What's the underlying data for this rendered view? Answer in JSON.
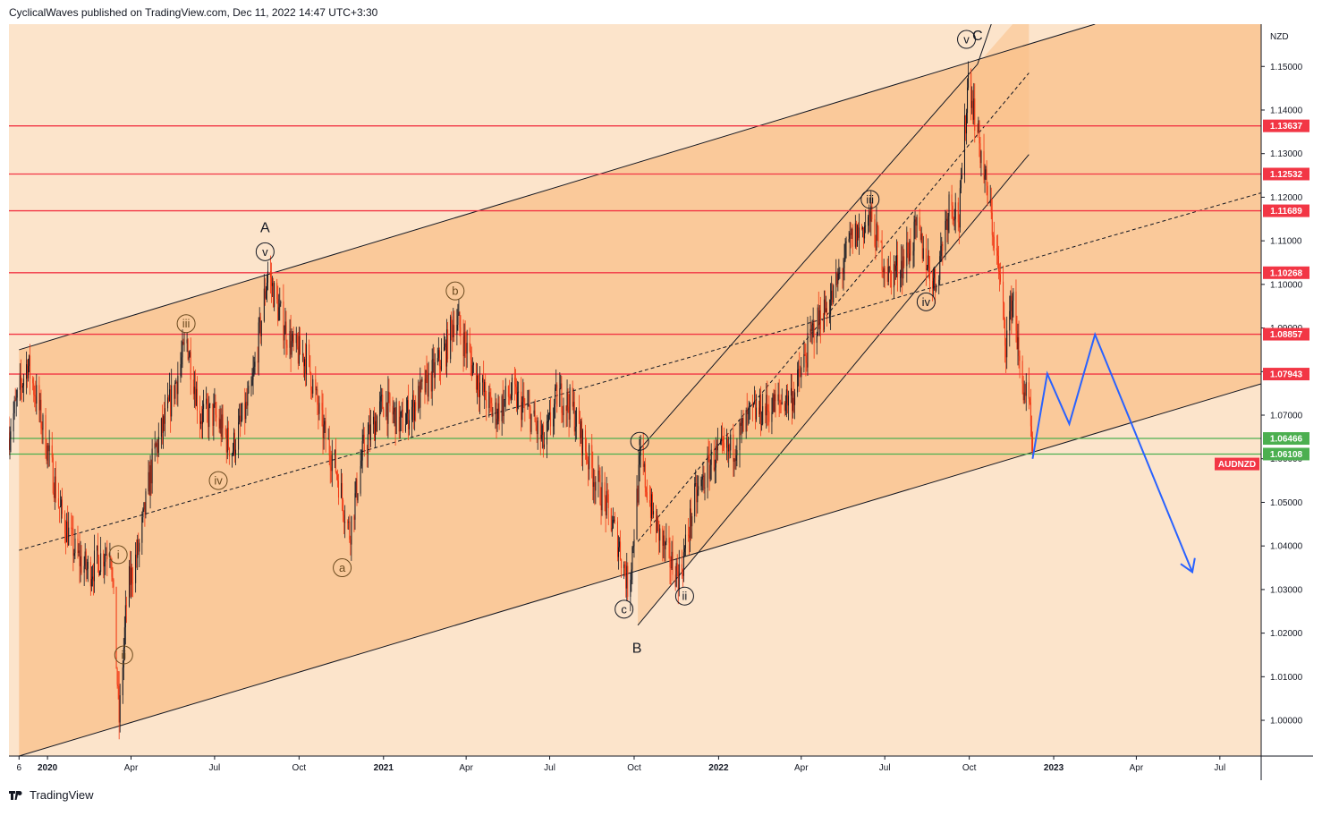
{
  "header": {
    "text": "CyclicalWaves published on TradingView.com, Dec 11, 2022 14:47 UTC+3:30"
  },
  "footer": {
    "brand": "TradingView",
    "logo_icon": "tradingview-logo-icon"
  },
  "chart_data": {
    "type": "candlestick",
    "symbol": "AUDNZD",
    "currency": "NZD",
    "colors": {
      "up": "#131722",
      "down": "#f23612",
      "resistance": "#f23645",
      "support": "#4caf50",
      "projection": "#2962ff",
      "channel_fill": "#f9c089",
      "background": "#fce4cb"
    },
    "x_axis": {
      "start": "2019-11-20",
      "end": "2023-08-15",
      "ticks": [
        {
          "date": "2019-12-01",
          "label": "6",
          "bold": false
        },
        {
          "date": "2020-01-01",
          "label": "2020",
          "bold": true
        },
        {
          "date": "2020-04-01",
          "label": "Apr",
          "bold": false
        },
        {
          "date": "2020-07-01",
          "label": "Jul",
          "bold": false
        },
        {
          "date": "2020-10-01",
          "label": "Oct",
          "bold": false
        },
        {
          "date": "2021-01-01",
          "label": "2021",
          "bold": true
        },
        {
          "date": "2021-04-01",
          "label": "Apr",
          "bold": false
        },
        {
          "date": "2021-07-01",
          "label": "Jul",
          "bold": false
        },
        {
          "date": "2021-10-01",
          "label": "Oct",
          "bold": false
        },
        {
          "date": "2022-01-01",
          "label": "2022",
          "bold": true
        },
        {
          "date": "2022-04-01",
          "label": "Apr",
          "bold": false
        },
        {
          "date": "2022-07-01",
          "label": "Jul",
          "bold": false
        },
        {
          "date": "2022-10-01",
          "label": "Oct",
          "bold": false
        },
        {
          "date": "2023-01-01",
          "label": "2023",
          "bold": true
        },
        {
          "date": "2023-04-01",
          "label": "Apr",
          "bold": false
        },
        {
          "date": "2023-07-01",
          "label": "Jul",
          "bold": false
        }
      ]
    },
    "y_axis": {
      "min": 0.9918,
      "max": 1.1597,
      "ticks": [
        "1.00000",
        "1.01000",
        "1.02000",
        "1.03000",
        "1.04000",
        "1.05000",
        "1.06000",
        "1.07000",
        "1.08000",
        "1.09000",
        "1.10000",
        "1.11000",
        "1.12000",
        "1.13000",
        "1.14000",
        "1.15000"
      ]
    },
    "price_path": [
      [
        "2019-11-20",
        1.066
      ],
      [
        "2019-12-01",
        1.075
      ],
      [
        "2019-12-10",
        1.082
      ],
      [
        "2019-12-20",
        1.074
      ],
      [
        "2020-01-01",
        1.062
      ],
      [
        "2020-01-15",
        1.048
      ],
      [
        "2020-02-01",
        1.038
      ],
      [
        "2020-02-15",
        1.034
      ],
      [
        "2020-03-01",
        1.038
      ],
      [
        "2020-03-10",
        1.04
      ],
      [
        "2020-03-19",
        1.0
      ],
      [
        "2020-03-28",
        1.03
      ],
      [
        "2020-04-10",
        1.04
      ],
      [
        "2020-04-25",
        1.06
      ],
      [
        "2020-05-10",
        1.07
      ],
      [
        "2020-06-01",
        1.087
      ],
      [
        "2020-06-15",
        1.07
      ],
      [
        "2020-07-01",
        1.07
      ],
      [
        "2020-07-20",
        1.062
      ],
      [
        "2020-08-10",
        1.075
      ],
      [
        "2020-08-28",
        1.103
      ],
      [
        "2020-09-10",
        1.093
      ],
      [
        "2020-09-25",
        1.085
      ],
      [
        "2020-10-10",
        1.083
      ],
      [
        "2020-10-25",
        1.068
      ],
      [
        "2020-11-10",
        1.058
      ],
      [
        "2020-11-25",
        1.043
      ],
      [
        "2020-12-10",
        1.062
      ],
      [
        "2021-01-01",
        1.073
      ],
      [
        "2021-01-20",
        1.068
      ],
      [
        "2021-02-05",
        1.073
      ],
      [
        "2021-02-20",
        1.078
      ],
      [
        "2021-03-10",
        1.085
      ],
      [
        "2021-03-20",
        1.093
      ],
      [
        "2021-04-10",
        1.08
      ],
      [
        "2021-05-01",
        1.07
      ],
      [
        "2021-05-20",
        1.075
      ],
      [
        "2021-06-10",
        1.07
      ],
      [
        "2021-06-25",
        1.063
      ],
      [
        "2021-07-10",
        1.075
      ],
      [
        "2021-07-25",
        1.072
      ],
      [
        "2021-08-15",
        1.058
      ],
      [
        "2021-08-30",
        1.05
      ],
      [
        "2021-09-15",
        1.04
      ],
      [
        "2021-09-25",
        1.03
      ],
      [
        "2021-10-08",
        1.06
      ],
      [
        "2021-10-20",
        1.048
      ],
      [
        "2021-11-05",
        1.038
      ],
      [
        "2021-11-20",
        1.033
      ],
      [
        "2021-12-05",
        1.05
      ],
      [
        "2021-12-25",
        1.06
      ],
      [
        "2022-01-15",
        1.062
      ],
      [
        "2022-02-05",
        1.07
      ],
      [
        "2022-03-01",
        1.072
      ],
      [
        "2022-03-25",
        1.075
      ],
      [
        "2022-04-15",
        1.09
      ],
      [
        "2022-05-05",
        1.097
      ],
      [
        "2022-05-25",
        1.11
      ],
      [
        "2022-06-15",
        1.115
      ],
      [
        "2022-07-05",
        1.102
      ],
      [
        "2022-07-20",
        1.105
      ],
      [
        "2022-08-05",
        1.112
      ],
      [
        "2022-08-25",
        1.1
      ],
      [
        "2022-09-10",
        1.12
      ],
      [
        "2022-09-20",
        1.115
      ],
      [
        "2022-09-30",
        1.148
      ],
      [
        "2022-10-10",
        1.135
      ],
      [
        "2022-10-25",
        1.115
      ],
      [
        "2022-11-01",
        1.105
      ],
      [
        "2022-11-10",
        1.087
      ],
      [
        "2022-11-18",
        1.098
      ],
      [
        "2022-11-25",
        1.08
      ],
      [
        "2022-12-05",
        1.072
      ],
      [
        "2022-12-09",
        1.06
      ]
    ],
    "horizontal_levels": [
      {
        "price": 1.13637,
        "label": "1.13637",
        "kind": "resistance"
      },
      {
        "price": 1.12532,
        "label": "1.12532",
        "kind": "resistance"
      },
      {
        "price": 1.11689,
        "label": "1.11689",
        "kind": "resistance"
      },
      {
        "price": 1.10268,
        "label": "1.10268",
        "kind": "resistance"
      },
      {
        "price": 1.08857,
        "label": "1.08857",
        "kind": "resistance"
      },
      {
        "price": 1.07943,
        "label": "1.07943",
        "kind": "resistance"
      },
      {
        "price": 1.06466,
        "label": "1.06466",
        "kind": "support"
      },
      {
        "price": 1.06108,
        "label": "1.06108",
        "kind": "support"
      }
    ],
    "last_price": {
      "price": 1.0588,
      "label": "AUDNZD"
    },
    "channels": [
      {
        "name": "large",
        "upper": [
          [
            "2019-12-01",
            1.085
          ],
          [
            "2023-02-15",
            1.1597
          ]
        ],
        "lower": [
          [
            "2019-12-01",
            0.9918
          ],
          [
            "2023-08-15",
            1.0772
          ]
        ],
        "fill_from": "2019-12-01",
        "fill_to": "2023-08-15"
      },
      {
        "name": "steep",
        "upper": [
          [
            "2021-10-05",
            1.0617
          ],
          [
            "2022-10-10",
            1.1505
          ]
        ],
        "lower": [
          [
            "2021-10-05",
            1.0218
          ],
          [
            "2022-12-05",
            1.1298
          ]
        ],
        "fill_from": "2021-10-05",
        "fill_to": "2022-12-05"
      }
    ],
    "dashed_lines": [
      [
        [
          "2019-12-01",
          1.039
        ],
        [
          "2023-08-15",
          1.121
        ]
      ],
      [
        [
          "2021-10-05",
          1.041
        ],
        [
          "2022-12-05",
          1.1485
        ]
      ]
    ],
    "c_line": [
      [
        "2022-10-10",
        1.1505
      ],
      [
        "2022-10-25",
        1.1597
      ]
    ],
    "projection": [
      [
        "2022-12-09",
        1.06
      ],
      [
        "2022-12-25",
        1.0795
      ],
      [
        "2023-01-18",
        1.068
      ],
      [
        "2023-02-15",
        1.0885
      ],
      [
        "2023-06-01",
        1.034
      ]
    ],
    "wave_labels": [
      {
        "text": "A",
        "date": "2020-08-25",
        "price": 1.113,
        "circled": false,
        "color": "#131722"
      },
      {
        "text": "v",
        "date": "2020-08-25",
        "price": 1.1075,
        "circled": true,
        "color": "#131722"
      },
      {
        "text": "iii",
        "date": "2020-05-31",
        "price": 1.091,
        "circled": true,
        "color": "#6b4a1f"
      },
      {
        "text": "iv",
        "date": "2020-07-05",
        "price": 1.055,
        "circled": true,
        "color": "#6b4a1f"
      },
      {
        "text": "i",
        "date": "2020-03-18",
        "price": 1.038,
        "circled": true,
        "color": "#6b4a1f"
      },
      {
        "text": "ii",
        "date": "2020-03-24",
        "price": 1.015,
        "circled": true,
        "color": "#6b4a1f"
      },
      {
        "text": "a",
        "date": "2020-11-17",
        "price": 1.035,
        "circled": true,
        "color": "#6b4a1f"
      },
      {
        "text": "b",
        "date": "2021-03-20",
        "price": 1.0985,
        "circled": true,
        "color": "#6b4a1f"
      },
      {
        "text": "c",
        "date": "2021-09-20",
        "price": 1.0255,
        "circled": true,
        "color": "#131722"
      },
      {
        "text": "B",
        "date": "2021-10-04",
        "price": 1.0165,
        "circled": false,
        "color": "#131722"
      },
      {
        "text": "i",
        "date": "2021-10-07",
        "price": 1.064,
        "circled": true,
        "color": "#131722"
      },
      {
        "text": "ii",
        "date": "2021-11-25",
        "price": 1.0285,
        "circled": true,
        "color": "#131722"
      },
      {
        "text": "iii",
        "date": "2022-06-15",
        "price": 1.1195,
        "circled": true,
        "color": "#131722"
      },
      {
        "text": "iv",
        "date": "2022-08-15",
        "price": 1.096,
        "circled": true,
        "color": "#131722"
      },
      {
        "text": "v",
        "date": "2022-09-28",
        "price": 1.1562,
        "circled": true,
        "color": "#131722"
      },
      {
        "text": "C",
        "date": "2022-10-10",
        "price": 1.157,
        "circled": false,
        "color": "#131722"
      }
    ]
  }
}
